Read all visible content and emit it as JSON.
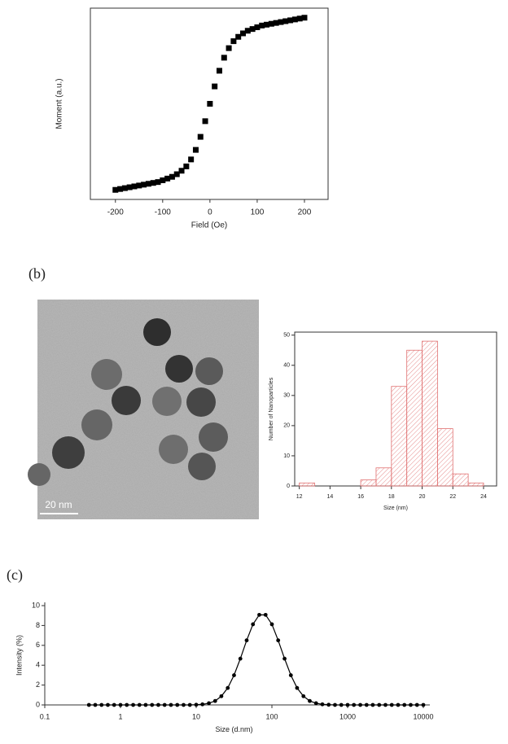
{
  "panel_labels": [
    "(b)",
    "(c)"
  ],
  "tem_image": {
    "scale_bar": "20 nm"
  },
  "chart_data": [
    {
      "type": "scatter",
      "x_label": "Field (Oe)",
      "y_label": "Moment (a.u.)",
      "color": "#000000",
      "x": [
        -200,
        -190,
        -180,
        -170,
        -160,
        -150,
        -140,
        -130,
        -120,
        -110,
        -100,
        -90,
        -80,
        -70,
        -60,
        -50,
        -40,
        -30,
        -20,
        -10,
        0,
        10,
        20,
        30,
        40,
        50,
        60,
        70,
        80,
        90,
        100,
        110,
        120,
        130,
        140,
        150,
        160,
        170,
        180,
        190,
        200
      ],
      "values": [
        -0.99,
        -0.98,
        -0.97,
        -0.96,
        -0.95,
        -0.94,
        -0.93,
        -0.92,
        -0.91,
        -0.9,
        -0.88,
        -0.86,
        -0.84,
        -0.81,
        -0.77,
        -0.72,
        -0.64,
        -0.53,
        -0.38,
        -0.2,
        0,
        0.2,
        0.38,
        0.53,
        0.64,
        0.72,
        0.77,
        0.81,
        0.84,
        0.86,
        0.88,
        0.9,
        0.91,
        0.92,
        0.93,
        0.94,
        0.95,
        0.96,
        0.97,
        0.98,
        0.99
      ],
      "xlim": [
        -253,
        250
      ],
      "ylim": [
        -1.1,
        1.1
      ],
      "xticks": [
        -200,
        -100,
        0,
        100,
        200
      ]
    },
    {
      "type": "histogram",
      "x_label": "Size (nm)",
      "y_label": "Number of Nanoparticles",
      "color": "#e07070",
      "bins": [
        12,
        13,
        14,
        15,
        16,
        17,
        18,
        19,
        20,
        21,
        22,
        23,
        24
      ],
      "values": [
        1,
        0,
        0,
        0,
        2,
        6,
        33,
        45,
        48,
        19,
        4,
        1
      ],
      "xlim": [
        11.7,
        24.85
      ],
      "ylim": [
        0,
        51
      ],
      "xticks": [
        12,
        14,
        16,
        18,
        20,
        22,
        24
      ],
      "yticks": [
        0,
        10,
        20,
        30,
        40,
        50
      ]
    },
    {
      "type": "line",
      "x_label": "Size (d.nm)",
      "y_label": "Intensity (%)",
      "color": "#000000",
      "xscale": "log",
      "x": [
        0.383,
        0.464,
        0.562,
        0.681,
        0.825,
        1,
        1.21,
        1.47,
        1.78,
        2.15,
        2.61,
        3.16,
        3.83,
        4.64,
        5.62,
        6.81,
        8.25,
        10,
        12.1,
        14.7,
        17.8,
        21.5,
        26.1,
        31.6,
        38.3,
        46.4,
        56.2,
        68.1,
        82.5,
        100,
        121,
        147,
        178,
        215,
        261,
        316,
        383,
        464,
        562,
        681,
        825,
        1000,
        1210,
        1470,
        1780,
        2150,
        2610,
        3160,
        3830,
        4640,
        5620,
        6810,
        8250,
        10000
      ],
      "values": [
        0,
        0,
        0,
        0,
        0,
        0,
        0,
        0,
        0,
        0,
        0,
        0,
        0,
        0,
        0,
        0,
        0,
        0.02,
        0.06,
        0.17,
        0.4,
        0.88,
        1.71,
        2.99,
        4.66,
        6.5,
        8.12,
        9.07,
        9.07,
        8.12,
        6.5,
        4.66,
        2.99,
        1.71,
        0.88,
        0.4,
        0.17,
        0.06,
        0.02,
        0,
        0,
        0,
        0,
        0,
        0,
        0,
        0,
        0,
        0,
        0,
        0,
        0,
        0,
        0
      ],
      "xlim": [
        0.1,
        10000
      ],
      "ylim": [
        0,
        10
      ],
      "xticks": [
        0.1,
        1,
        10,
        100,
        1000,
        10000
      ],
      "yticks": [
        0,
        2,
        4,
        6,
        8,
        10
      ]
    }
  ]
}
